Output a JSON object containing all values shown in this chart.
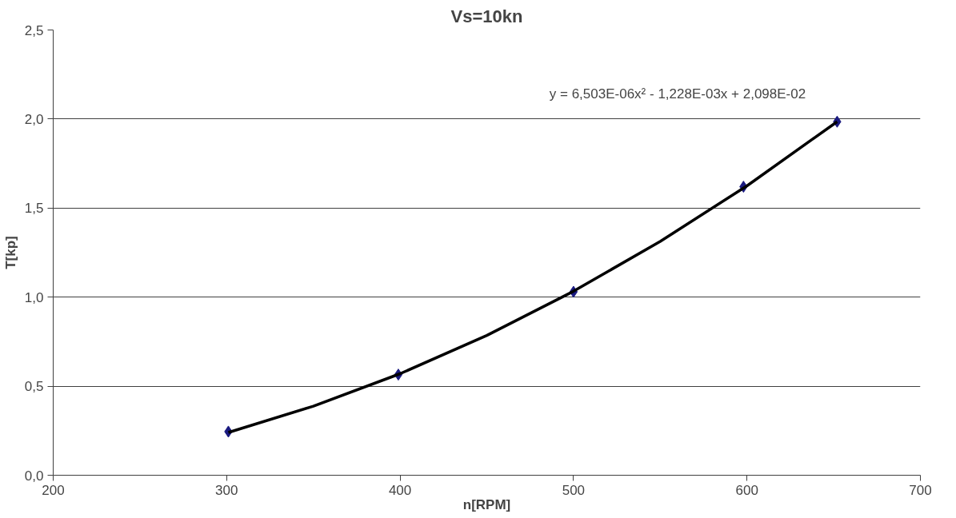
{
  "chart_data": {
    "type": "scatter",
    "title": "Vs=10kn",
    "xlabel": "n[RPM]",
    "ylabel": "T[kp]",
    "annotations": [
      "y = 6,503E-06x² - 1,228E-03x + 2,098E-02"
    ],
    "series": [
      {
        "color": "#1a1a80",
        "marker": "diamond",
        "x": [
          301,
          399,
          500,
          598,
          652
        ],
        "values": [
          0.245,
          0.565,
          1.03,
          1.62,
          1.985
        ]
      },
      {
        "type": "line",
        "color": "#000000",
        "marker": "none",
        "line_style": "solid",
        "x": [
          301,
          350,
          400,
          450,
          500,
          550,
          600,
          652
        ],
        "values": [
          0.24,
          0.388,
          0.57,
          0.785,
          1.033,
          1.313,
          1.625,
          1.985
        ]
      }
    ],
    "xlim": [
      200,
      700
    ],
    "ylim": [
      0,
      2.5
    ],
    "xticks": [
      200,
      300,
      400,
      500,
      600,
      700
    ],
    "yticks": [
      {
        "value": 0,
        "label": "0,0"
      },
      {
        "value": 0.5,
        "label": "0,5"
      },
      {
        "value": 1,
        "label": "1,0"
      },
      {
        "value": 1.5,
        "label": "1,5"
      },
      {
        "value": 2,
        "label": "2,0"
      },
      {
        "value": 2.5,
        "label": "2,5"
      }
    ],
    "grid": "y"
  }
}
